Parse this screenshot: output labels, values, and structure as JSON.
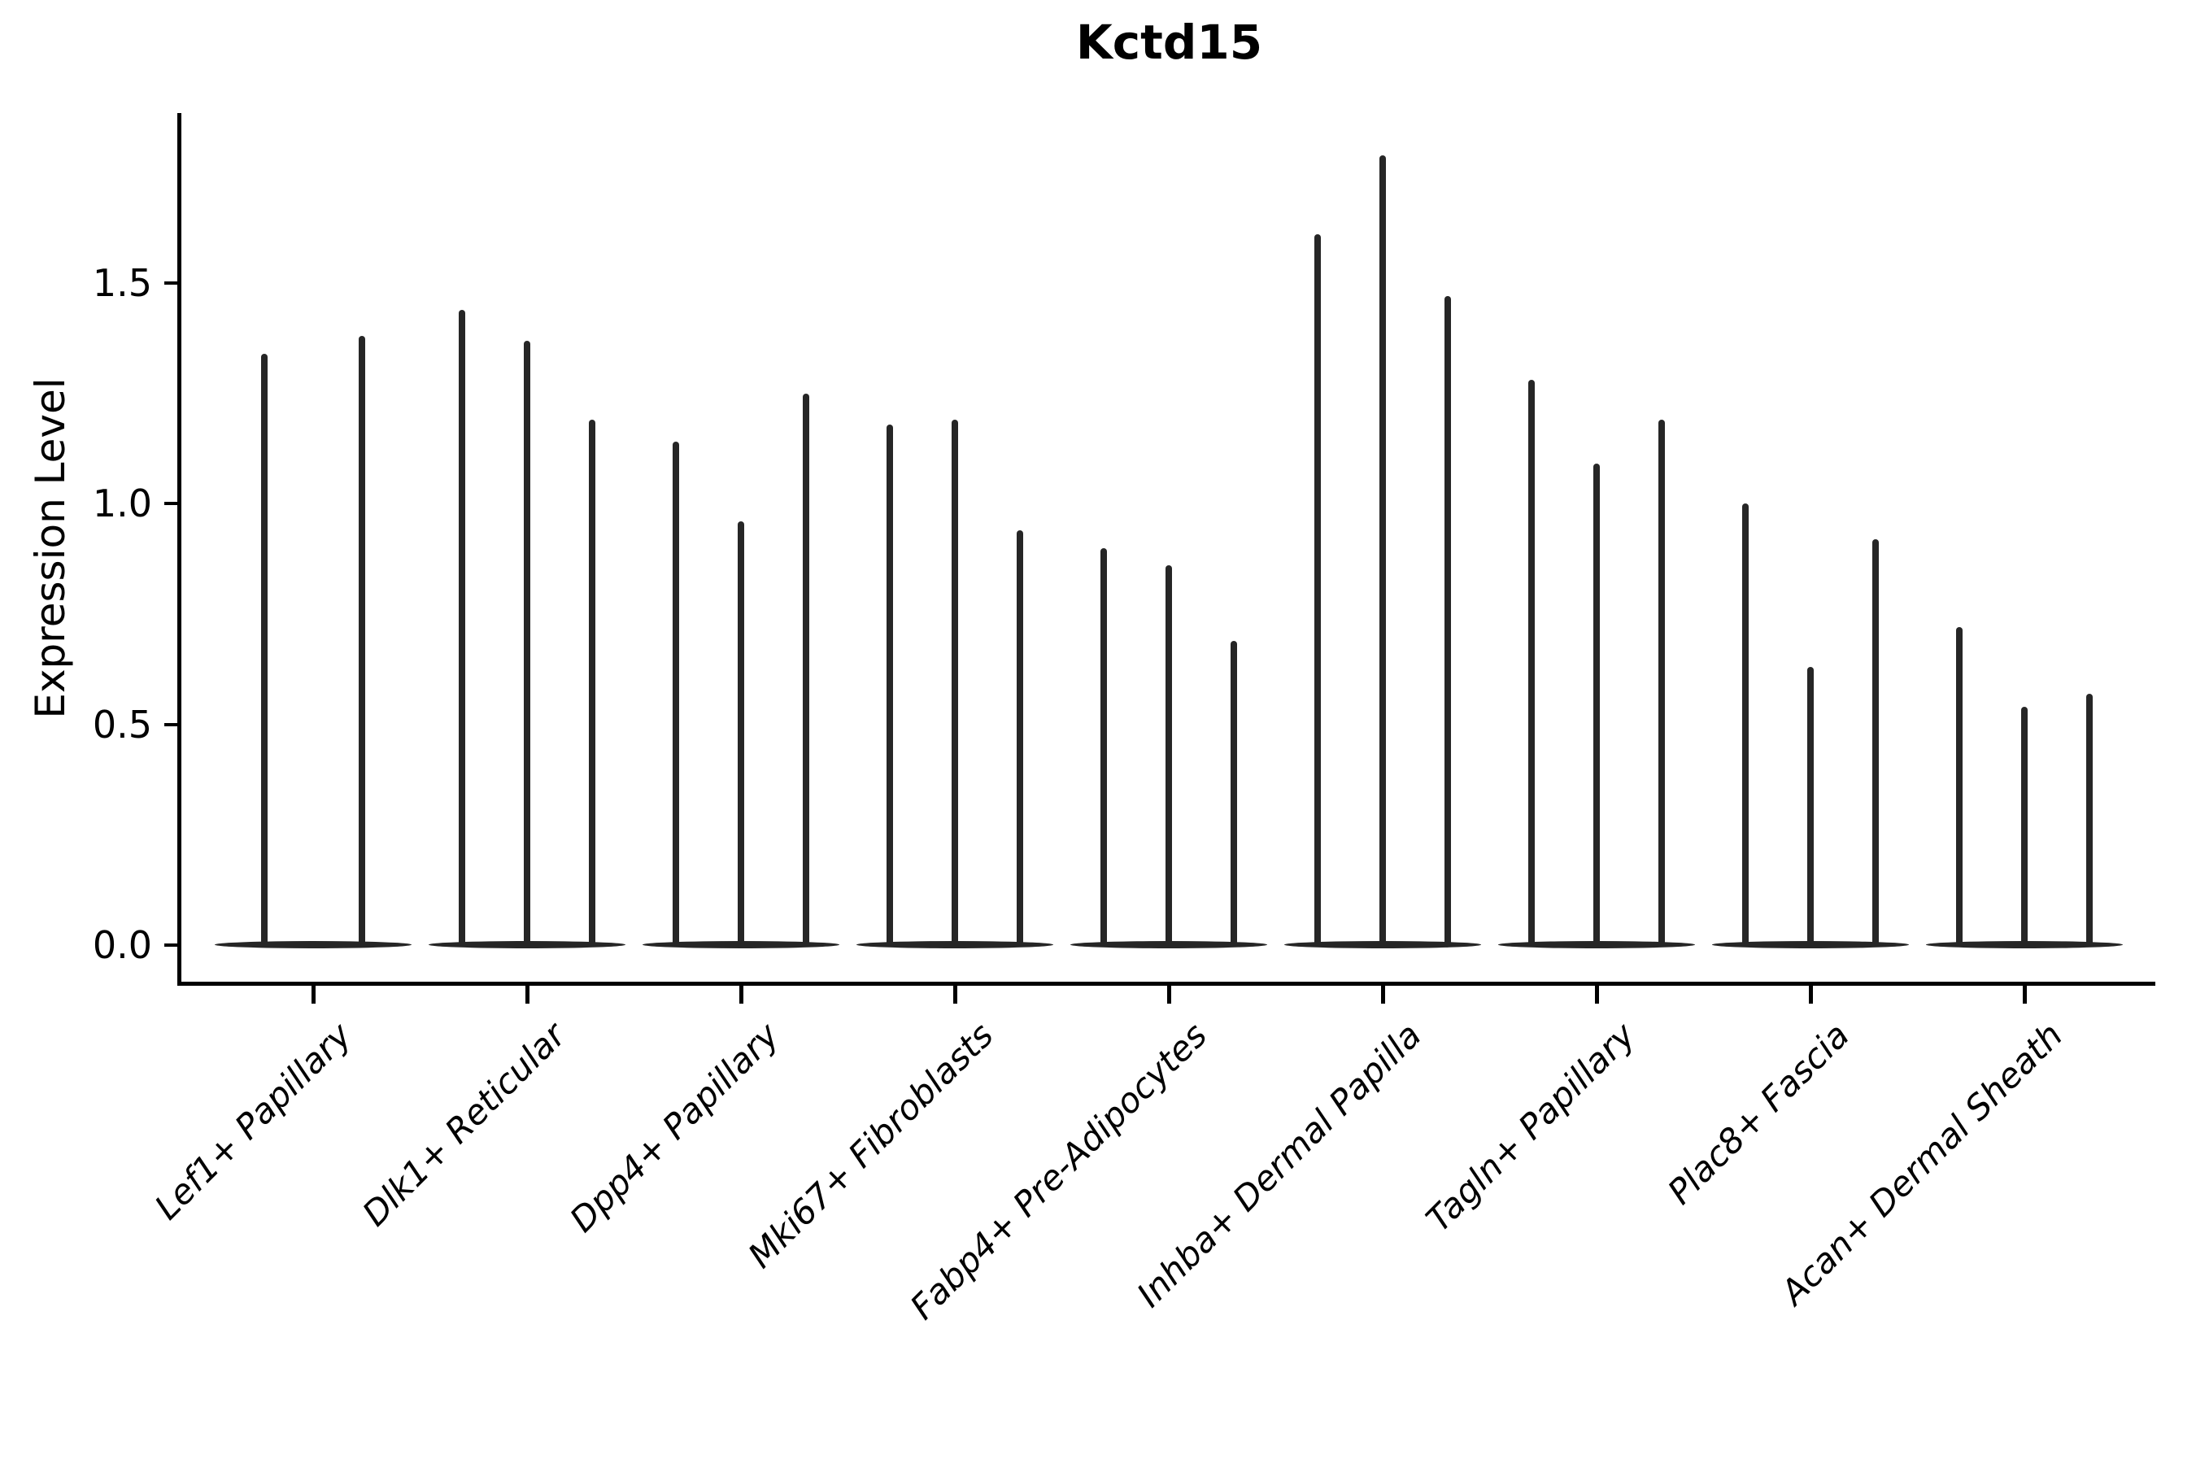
{
  "title": "Kctd15",
  "y_axis": {
    "label": "Expression Level"
  },
  "colors": {
    "violin": "#262626",
    "axis": "#000000"
  },
  "chart_data": {
    "type": "violin",
    "title": "Kctd15",
    "xlabel": "",
    "ylabel": "Expression Level",
    "ylim": [
      -0.09,
      1.89
    ],
    "yticks": [
      0.0,
      0.5,
      1.0,
      1.5
    ],
    "ytick_labels": [
      "0.0",
      "0.5",
      "1.0",
      "1.5"
    ],
    "grid": false,
    "legend": "none",
    "categories": [
      "Lef1+ Papillary",
      "Dlk1+ Reticular",
      "Dpp4+ Papillary",
      "Mki67+ Fibroblasts",
      "Fabp4+ Pre-Adipocytes",
      "Inhba+ Dermal Papilla",
      "Tagln+ Papillary",
      "Plac8+ Fascia",
      "Acan+ Dermal Sheath"
    ],
    "series": [
      {
        "category": "Lef1+ Papillary",
        "violin_max_values": [
          1.34,
          1.38
        ]
      },
      {
        "category": "Dlk1+ Reticular",
        "violin_max_values": [
          1.44,
          1.37,
          1.19
        ]
      },
      {
        "category": "Dpp4+ Papillary",
        "violin_max_values": [
          1.14,
          0.96,
          1.25
        ]
      },
      {
        "category": "Mki67+ Fibroblasts",
        "violin_max_values": [
          1.18,
          1.19,
          0.94
        ]
      },
      {
        "category": "Fabp4+ Pre-Adipocytes",
        "violin_max_values": [
          0.9,
          0.86,
          0.69
        ]
      },
      {
        "category": "Inhba+ Dermal Papilla",
        "violin_max_values": [
          1.61,
          1.79,
          1.47
        ]
      },
      {
        "category": "Tagln+ Papillary",
        "violin_max_values": [
          1.28,
          1.09,
          1.19
        ]
      },
      {
        "category": "Plac8+ Fascia",
        "violin_max_values": [
          1.0,
          0.63,
          0.92
        ]
      },
      {
        "category": "Acan+ Dermal Sheath",
        "violin_max_values": [
          0.72,
          0.54,
          0.57
        ]
      }
    ],
    "note": "Each violin is degenerate: nearly all density lies at expression 0 (flat lens at baseline) with a hair-thin spike rising to the listed maximum expression value."
  }
}
